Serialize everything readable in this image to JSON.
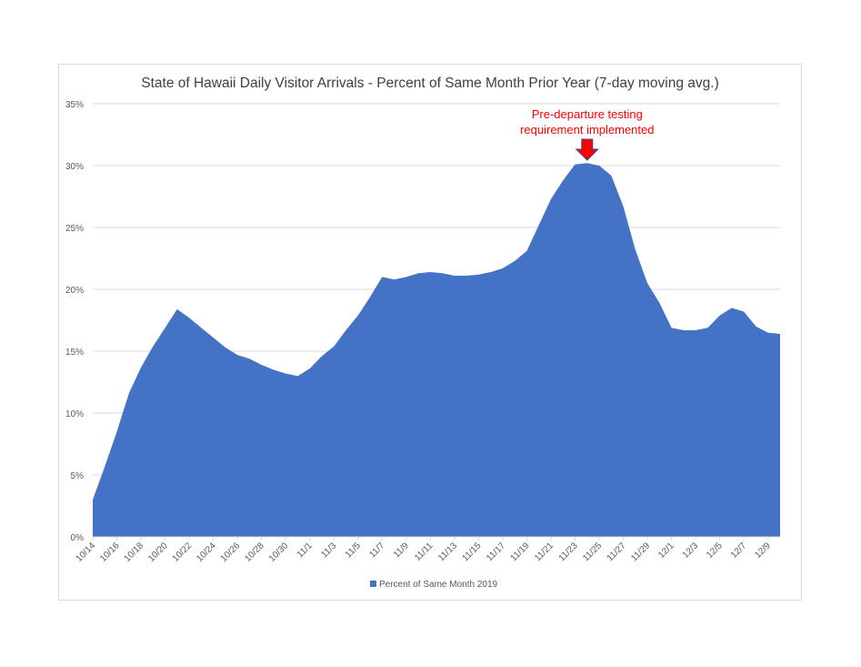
{
  "chart_data": {
    "type": "area",
    "title": "State of Hawaii Daily Visitor Arrivals - Percent of Same Month Prior Year (7-day moving avg.)",
    "xlabel": "",
    "ylabel": "",
    "ylim": [
      0,
      35
    ],
    "yticks": [
      "0%",
      "5%",
      "10%",
      "15%",
      "20%",
      "25%",
      "30%",
      "35%"
    ],
    "ytick_values": [
      0,
      5,
      10,
      15,
      20,
      25,
      30,
      35
    ],
    "grid": true,
    "legend_position": "bottom",
    "start_date": "2020-10-14",
    "xtick_every_days": 2,
    "series": [
      {
        "name": "Percent of Same Month 2019",
        "color": "#4472c4",
        "values": [
          3.0,
          5.7,
          8.5,
          11.6,
          13.7,
          15.4,
          16.9,
          18.4,
          17.7,
          16.9,
          16.1,
          15.3,
          14.7,
          14.4,
          13.9,
          13.5,
          13.2,
          13.0,
          13.6,
          14.6,
          15.4,
          16.7,
          17.9,
          19.4,
          21.0,
          20.8,
          21.0,
          21.3,
          21.4,
          21.3,
          21.1,
          21.1,
          21.2,
          21.4,
          21.7,
          22.3,
          23.1,
          25.2,
          27.3,
          28.8,
          30.1,
          30.2,
          30.0,
          29.2,
          26.7,
          23.2,
          20.5,
          18.9,
          16.9,
          16.7,
          16.7,
          16.9,
          17.9,
          18.5,
          18.2,
          17.0,
          16.5,
          16.4
        ]
      }
    ],
    "annotation": {
      "line1": "Pre-departure testing",
      "line2": "requirement implemented",
      "color": "#ff0000",
      "arrow_index": 41
    }
  }
}
